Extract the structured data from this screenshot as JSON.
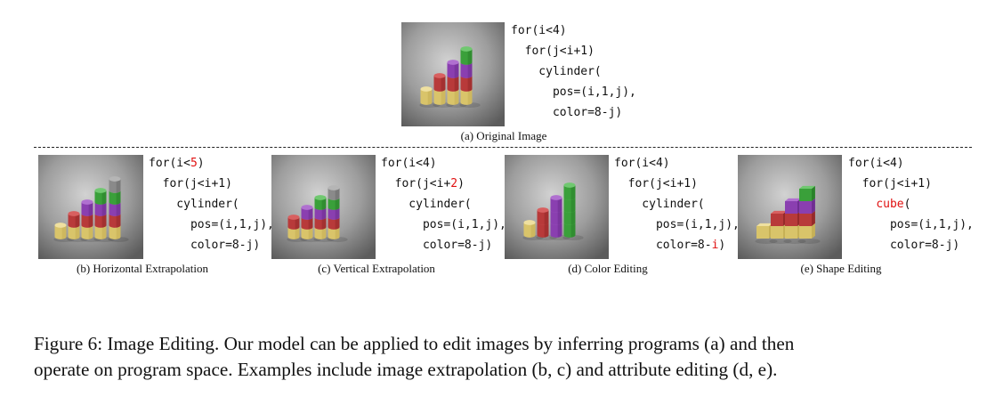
{
  "panels": [
    {
      "id": "a",
      "caption": "(a) Original Image",
      "code": [
        [
          {
            "t": "for(i<4)"
          }
        ],
        [
          {
            "t": "  for(j<i+1)"
          }
        ],
        [
          {
            "t": "    cylinder("
          }
        ],
        [
          {
            "t": "      pos=(i,1,j),"
          }
        ],
        [
          {
            "t": "      color=8-j)"
          }
        ]
      ]
    },
    {
      "id": "b",
      "caption": "(b) Horizontal Extrapolation",
      "code": [
        [
          {
            "t": "for(i<"
          },
          {
            "t": "5",
            "hl": true
          },
          {
            "t": ")"
          }
        ],
        [
          {
            "t": "  for(j<i+1)"
          }
        ],
        [
          {
            "t": "    cylinder("
          }
        ],
        [
          {
            "t": "      pos=(i,1,j),"
          }
        ],
        [
          {
            "t": "      color=8-j)"
          }
        ]
      ]
    },
    {
      "id": "c",
      "caption": "(c) Vertical Extrapolation",
      "code": [
        [
          {
            "t": "for(i<4)"
          }
        ],
        [
          {
            "t": "  for(j<i+"
          },
          {
            "t": "2",
            "hl": true
          },
          {
            "t": ")"
          }
        ],
        [
          {
            "t": "    cylinder("
          }
        ],
        [
          {
            "t": "      pos=(i,1,j),"
          }
        ],
        [
          {
            "t": "      color=8-j)"
          }
        ]
      ]
    },
    {
      "id": "d",
      "caption": "(d) Color Editing",
      "code": [
        [
          {
            "t": "for(i<4)"
          }
        ],
        [
          {
            "t": "  for(j<i+1)"
          }
        ],
        [
          {
            "t": "    cylinder("
          }
        ],
        [
          {
            "t": "      pos=(i,1,j),"
          }
        ],
        [
          {
            "t": "      color=8-"
          },
          {
            "t": "i",
            "hl": true
          },
          {
            "t": ")"
          }
        ]
      ]
    },
    {
      "id": "e",
      "caption": "(e) Shape Editing",
      "code": [
        [
          {
            "t": "for(i<4)"
          }
        ],
        [
          {
            "t": "  for(j<i+1)"
          }
        ],
        [
          {
            "t": "    "
          },
          {
            "t": "cube",
            "hl": true
          },
          {
            "t": "("
          }
        ],
        [
          {
            "t": "      pos=(i,1,j),"
          }
        ],
        [
          {
            "t": "      color=8-j)"
          }
        ]
      ]
    }
  ],
  "colors": {
    "highlight": "#e01010"
  },
  "caption": {
    "line1": "Figure 6: Image Editing. Our model can be applied to edit images by inferring programs (a) and then",
    "line2": "operate on program space. Examples include image extrapolation (b, c) and attribute editing (d, e)."
  }
}
